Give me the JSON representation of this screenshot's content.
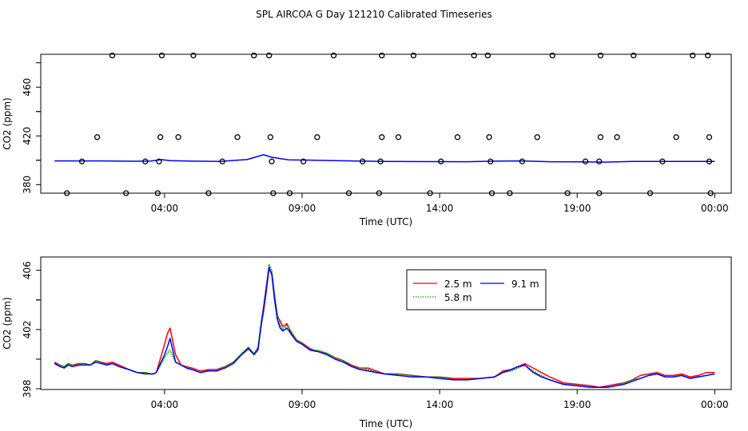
{
  "title": "SPL AIRCOA G  Day 121210  Calibrated Timeseries",
  "chart_data": [
    {
      "type": "scatter+line",
      "xlabel": "Time (UTC)",
      "ylabel": "CO2 (ppm)",
      "x_ticks": [
        {
          "value": 4,
          "label": "04:00"
        },
        {
          "value": 9,
          "label": "09:00"
        },
        {
          "value": 14,
          "label": "14:00"
        },
        {
          "value": 19,
          "label": "19:00"
        },
        {
          "value": 24,
          "label": "00:00"
        }
      ],
      "y_ticks": [
        380,
        420,
        460
      ],
      "xlim": [
        -0.5,
        24.6
      ],
      "ylim": [
        373,
        487
      ],
      "calibration_points": [
        {
          "x": 2.1,
          "y": 486
        },
        {
          "x": 3.9,
          "y": 486
        },
        {
          "x": 5.05,
          "y": 486
        },
        {
          "x": 7.25,
          "y": 486
        },
        {
          "x": 7.8,
          "y": 486
        },
        {
          "x": 10.15,
          "y": 486
        },
        {
          "x": 11.9,
          "y": 486
        },
        {
          "x": 13.05,
          "y": 486
        },
        {
          "x": 15.25,
          "y": 486
        },
        {
          "x": 15.75,
          "y": 486
        },
        {
          "x": 18.1,
          "y": 486
        },
        {
          "x": 19.85,
          "y": 486
        },
        {
          "x": 21.05,
          "y": 486
        },
        {
          "x": 23.2,
          "y": 486
        },
        {
          "x": 23.75,
          "y": 486
        },
        {
          "x": 1.55,
          "y": 419
        },
        {
          "x": 3.85,
          "y": 419
        },
        {
          "x": 4.5,
          "y": 419
        },
        {
          "x": 6.65,
          "y": 419
        },
        {
          "x": 7.85,
          "y": 419
        },
        {
          "x": 9.55,
          "y": 419
        },
        {
          "x": 11.9,
          "y": 419
        },
        {
          "x": 12.5,
          "y": 419
        },
        {
          "x": 14.65,
          "y": 419
        },
        {
          "x": 15.8,
          "y": 419
        },
        {
          "x": 17.55,
          "y": 419
        },
        {
          "x": 19.85,
          "y": 419
        },
        {
          "x": 20.45,
          "y": 419
        },
        {
          "x": 22.6,
          "y": 419
        },
        {
          "x": 23.8,
          "y": 419
        },
        {
          "x": 1.0,
          "y": 399
        },
        {
          "x": 3.3,
          "y": 399
        },
        {
          "x": 3.8,
          "y": 399
        },
        {
          "x": 6.1,
          "y": 399
        },
        {
          "x": 7.9,
          "y": 399
        },
        {
          "x": 9.05,
          "y": 399
        },
        {
          "x": 11.2,
          "y": 399
        },
        {
          "x": 11.85,
          "y": 399
        },
        {
          "x": 14.05,
          "y": 399
        },
        {
          "x": 15.85,
          "y": 399
        },
        {
          "x": 17.0,
          "y": 399
        },
        {
          "x": 19.3,
          "y": 399
        },
        {
          "x": 19.8,
          "y": 399
        },
        {
          "x": 22.1,
          "y": 399
        },
        {
          "x": 23.8,
          "y": 399
        },
        {
          "x": 0.45,
          "y": 373
        },
        {
          "x": 2.6,
          "y": 373
        },
        {
          "x": 3.75,
          "y": 373
        },
        {
          "x": 5.6,
          "y": 373
        },
        {
          "x": 7.95,
          "y": 373
        },
        {
          "x": 8.55,
          "y": 373
        },
        {
          "x": 10.7,
          "y": 373
        },
        {
          "x": 11.8,
          "y": 373
        },
        {
          "x": 13.65,
          "y": 373
        },
        {
          "x": 15.9,
          "y": 373
        },
        {
          "x": 16.55,
          "y": 373
        },
        {
          "x": 18.65,
          "y": 373
        },
        {
          "x": 19.8,
          "y": 373
        },
        {
          "x": 21.65,
          "y": 373
        },
        {
          "x": 23.85,
          "y": 373
        }
      ],
      "series": [
        {
          "color": "#0000ff",
          "x": [
            0,
            1,
            2,
            3,
            3.5,
            3.9,
            4.2,
            5,
            6,
            7,
            7.6,
            7.9,
            8.5,
            10,
            11,
            12,
            14,
            15,
            16,
            17,
            18,
            19,
            20,
            21,
            22,
            23,
            24
          ],
          "values": [
            399.5,
            399.5,
            399.4,
            399.2,
            399.4,
            400.5,
            399.7,
            399.3,
            399.1,
            400.6,
            404.5,
            402.5,
            400.4,
            399.8,
            399.4,
            399.0,
            398.9,
            398.8,
            399.3,
            399.5,
            398.8,
            398.7,
            398.5,
            399.0,
            399.1,
            399.0,
            399.1
          ]
        }
      ]
    },
    {
      "type": "line",
      "xlabel": "Time (UTC)",
      "ylabel": "CO2 (ppm)",
      "x_ticks": [
        {
          "value": 4,
          "label": "04:00"
        },
        {
          "value": 9,
          "label": "09:00"
        },
        {
          "value": 14,
          "label": "14:00"
        },
        {
          "value": 19,
          "label": "19:00"
        },
        {
          "value": 24,
          "label": "00:00"
        }
      ],
      "y_ticks": [
        398,
        402,
        406
      ],
      "xlim": [
        -0.5,
        24.6
      ],
      "ylim": [
        397.95,
        406.9
      ],
      "legend": {
        "position": "top-center",
        "entries": [
          {
            "name": "2.5 m",
            "color": "#ff0000",
            "dash": "solid"
          },
          {
            "name": "9.1 m",
            "color": "#0000ff",
            "dash": "solid"
          },
          {
            "name": "5.8 m",
            "color": "#00aa00",
            "dash": "dotted"
          }
        ]
      },
      "series": [
        {
          "name": "2.5 m",
          "color": "#ff0000",
          "x": [
            0,
            0.2,
            0.35,
            0.5,
            0.65,
            0.9,
            1.1,
            1.3,
            1.5,
            1.7,
            1.9,
            2.1,
            2.35,
            2.7,
            3.0,
            3.3,
            3.5,
            3.6,
            3.7,
            4.0,
            4.1,
            4.2,
            4.4,
            4.6,
            4.8,
            5.0,
            5.3,
            5.6,
            5.9,
            6.2,
            6.5,
            6.8,
            7.05,
            7.25,
            7.4,
            7.5,
            7.6,
            7.7,
            7.8,
            7.9,
            8.0,
            8.1,
            8.2,
            8.3,
            8.45,
            8.6,
            8.8,
            9.0,
            9.3,
            9.6,
            9.9,
            10.2,
            10.5,
            10.8,
            11.1,
            11.4,
            11.7,
            12.0,
            12.5,
            13.0,
            13.5,
            14.0,
            14.5,
            15.0,
            15.5,
            16.0,
            16.3,
            16.6,
            16.85,
            17.1,
            17.4,
            17.7,
            18.0,
            18.5,
            19.0,
            19.5,
            19.8,
            20.1,
            20.4,
            20.7,
            21.0,
            21.3,
            21.6,
            21.9,
            22.2,
            22.5,
            22.8,
            23.1,
            23.4,
            23.7,
            24.0
          ],
          "values": [
            399.8,
            399.6,
            399.5,
            399.7,
            399.6,
            399.7,
            399.7,
            399.6,
            399.9,
            399.8,
            399.7,
            399.8,
            399.6,
            399.3,
            399.1,
            399.1,
            399.0,
            399.0,
            399.1,
            401.0,
            401.7,
            402.1,
            400.3,
            399.6,
            399.5,
            399.4,
            399.2,
            399.3,
            399.3,
            399.5,
            399.8,
            400.3,
            400.8,
            400.3,
            400.6,
            402.2,
            403.2,
            404.6,
            406.1,
            405.8,
            404.2,
            402.9,
            402.6,
            402.2,
            402.4,
            401.8,
            401.3,
            401.1,
            400.7,
            400.5,
            400.4,
            400.1,
            399.9,
            399.6,
            399.4,
            399.4,
            399.2,
            399.0,
            399.0,
            398.9,
            398.8,
            398.8,
            398.7,
            398.7,
            398.7,
            398.8,
            399.2,
            399.3,
            399.5,
            399.7,
            399.4,
            399.1,
            398.8,
            398.4,
            398.3,
            398.2,
            398.1,
            398.2,
            398.3,
            398.4,
            398.6,
            398.9,
            399.0,
            399.1,
            398.9,
            398.9,
            399.0,
            398.8,
            398.9,
            399.1,
            399.1
          ]
        },
        {
          "name": "5.8 m",
          "color": "#00aa00",
          "x": [
            0,
            0.2,
            0.35,
            0.5,
            0.65,
            0.9,
            1.1,
            1.3,
            1.5,
            1.7,
            1.9,
            2.1,
            2.35,
            2.7,
            3.0,
            3.3,
            3.5,
            3.6,
            3.7,
            4.0,
            4.1,
            4.2,
            4.4,
            4.6,
            4.8,
            5.0,
            5.3,
            5.6,
            5.9,
            6.2,
            6.5,
            6.8,
            7.05,
            7.25,
            7.4,
            7.5,
            7.6,
            7.7,
            7.8,
            7.9,
            8.0,
            8.1,
            8.2,
            8.3,
            8.45,
            8.6,
            8.8,
            9.0,
            9.3,
            9.6,
            9.9,
            10.2,
            10.5,
            10.8,
            11.1,
            11.4,
            11.7,
            12.0,
            12.5,
            13.0,
            13.5,
            14.0,
            14.5,
            15.0,
            15.5,
            16.0,
            16.3,
            16.6,
            16.85,
            17.1,
            17.4,
            17.7,
            18.0,
            18.5,
            19.0,
            19.5,
            19.8,
            20.1,
            20.4,
            20.7,
            21.0,
            21.3,
            21.6,
            21.9,
            22.2,
            22.5,
            22.8,
            23.1,
            23.4,
            23.7,
            24.0
          ],
          "values": [
            399.7,
            399.6,
            399.5,
            399.7,
            399.6,
            399.6,
            399.7,
            399.6,
            399.9,
            399.8,
            399.6,
            399.7,
            399.5,
            399.3,
            399.1,
            399.1,
            399.0,
            399.0,
            399.1,
            400.1,
            400.4,
            400.6,
            399.8,
            399.6,
            399.4,
            399.3,
            399.1,
            399.2,
            399.2,
            399.5,
            399.8,
            400.4,
            400.8,
            400.4,
            400.8,
            402.4,
            403.6,
            405.0,
            406.4,
            406.0,
            404.4,
            403.1,
            402.3,
            402.0,
            402.3,
            401.9,
            401.3,
            401.1,
            400.6,
            400.6,
            400.4,
            400.1,
            399.9,
            399.5,
            399.4,
            399.3,
            399.1,
            399.0,
            399.0,
            398.9,
            398.8,
            398.8,
            398.6,
            398.6,
            398.7,
            398.8,
            399.1,
            399.2,
            399.4,
            399.6,
            399.2,
            398.9,
            398.6,
            398.3,
            398.2,
            398.1,
            398.1,
            398.1,
            398.2,
            398.4,
            398.6,
            398.7,
            398.9,
            399.0,
            398.8,
            398.8,
            398.9,
            398.7,
            398.8,
            398.9,
            null
          ]
        },
        {
          "name": "9.1 m",
          "color": "#0000ff",
          "x": [
            0,
            0.2,
            0.35,
            0.5,
            0.65,
            0.9,
            1.1,
            1.3,
            1.5,
            1.7,
            1.9,
            2.1,
            2.35,
            2.7,
            3.0,
            3.3,
            3.5,
            3.6,
            3.7,
            4.0,
            4.1,
            4.2,
            4.4,
            4.6,
            4.8,
            5.0,
            5.3,
            5.6,
            5.9,
            6.2,
            6.5,
            6.8,
            7.05,
            7.25,
            7.4,
            7.5,
            7.6,
            7.7,
            7.8,
            7.9,
            8.0,
            8.1,
            8.2,
            8.3,
            8.45,
            8.6,
            8.8,
            9.0,
            9.3,
            9.6,
            9.9,
            10.2,
            10.5,
            10.8,
            11.1,
            11.4,
            11.7,
            12.0,
            12.5,
            13.0,
            13.5,
            14.0,
            14.5,
            15.0,
            15.5,
            16.0,
            16.3,
            16.6,
            16.85,
            17.1,
            17.4,
            17.7,
            18.0,
            18.5,
            19.0,
            19.5,
            19.8,
            20.1,
            20.4,
            20.7,
            21.0,
            21.3,
            21.6,
            21.9,
            22.2,
            22.5,
            22.8,
            23.1,
            23.4,
            23.7,
            24.0
          ],
          "values": [
            399.7,
            399.5,
            399.4,
            399.6,
            399.5,
            399.6,
            399.6,
            399.6,
            399.8,
            399.7,
            399.6,
            399.7,
            399.5,
            399.3,
            399.1,
            399.0,
            399.0,
            399.0,
            399.1,
            400.3,
            400.8,
            401.4,
            399.8,
            399.6,
            399.4,
            399.3,
            399.1,
            399.2,
            399.2,
            399.4,
            399.7,
            400.3,
            400.7,
            400.3,
            400.7,
            402.1,
            403.4,
            404.8,
            406.2,
            405.7,
            404.0,
            402.7,
            402.1,
            401.9,
            402.1,
            401.7,
            401.2,
            401.0,
            400.6,
            400.5,
            400.3,
            400.0,
            399.8,
            399.5,
            399.3,
            399.2,
            399.1,
            399.0,
            398.9,
            398.8,
            398.8,
            398.7,
            398.6,
            398.6,
            398.7,
            398.8,
            399.1,
            399.3,
            399.5,
            399.6,
            399.1,
            398.8,
            398.6,
            398.3,
            398.2,
            398.1,
            398.1,
            398.1,
            398.2,
            398.3,
            398.5,
            398.7,
            398.9,
            399.0,
            398.8,
            398.8,
            398.9,
            398.7,
            398.8,
            398.9,
            399.0
          ]
        }
      ]
    }
  ]
}
